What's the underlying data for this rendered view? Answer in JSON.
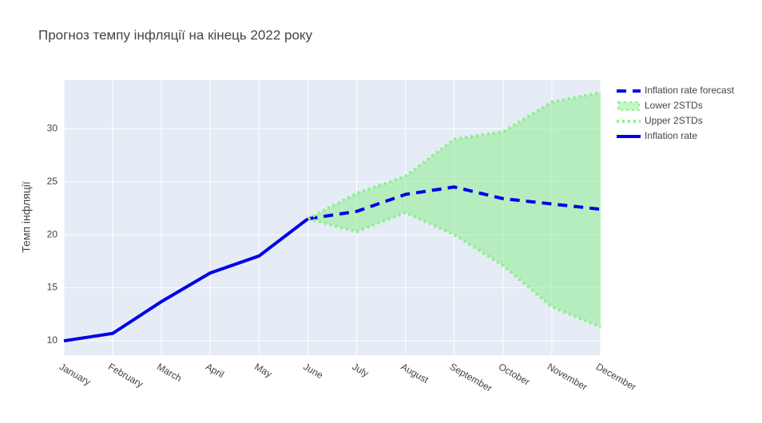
{
  "chart_data": {
    "type": "line",
    "title": "Прогноз темпу інфляції на кінець 2022 року",
    "y_label": "Темп інфляції",
    "categories": [
      "January",
      "February",
      "March",
      "April",
      "May",
      "June",
      "July",
      "August",
      "September",
      "October",
      "November",
      "December"
    ],
    "series": [
      {
        "name": "Inflation rate forecast",
        "color": "#0000e6",
        "dash": "dash",
        "width": 4,
        "values": [
          null,
          null,
          null,
          null,
          null,
          21.5,
          22.2,
          23.8,
          24.5,
          23.4,
          22.9,
          22.4
        ]
      },
      {
        "name": "Lower 2STDs",
        "color": "#90ee90",
        "dash": "dot",
        "width": 4,
        "values": [
          null,
          null,
          null,
          null,
          null,
          21.5,
          20.3,
          22.1,
          20.0,
          17.1,
          13.2,
          11.3
        ]
      },
      {
        "name": "Upper 2STDs",
        "color": "#90ee90",
        "dash": "dot",
        "width": 4,
        "fill": "tonexty",
        "fillcolor": "rgba(144,238,144,0.55)",
        "values": [
          null,
          null,
          null,
          null,
          null,
          21.5,
          23.9,
          25.5,
          29.0,
          29.7,
          32.5,
          33.4
        ]
      },
      {
        "name": "Inflation rate",
        "color": "#0000e6",
        "dash": "solid",
        "width": 4,
        "values": [
          10.0,
          10.7,
          13.7,
          16.4,
          18.0,
          21.5,
          null,
          null,
          null,
          null,
          null,
          null
        ]
      }
    ],
    "ylim": [
      8.65,
      34.6
    ],
    "yticks": [
      10,
      15,
      20,
      25,
      30
    ],
    "grid": true,
    "legend": "right"
  }
}
